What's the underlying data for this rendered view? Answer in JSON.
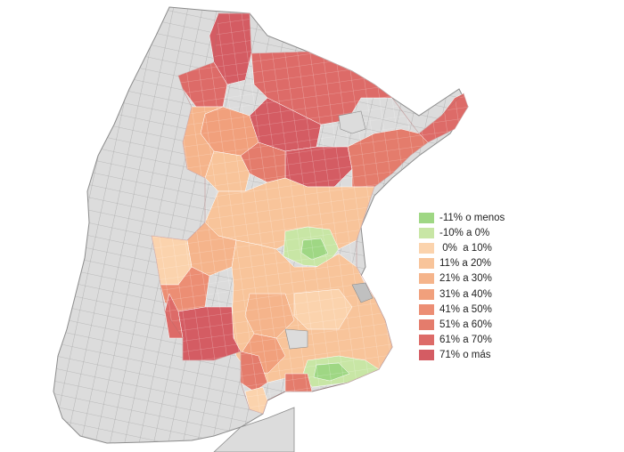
{
  "map": {
    "background_land_color": "#dcdcdc",
    "border_color": "#8c8c8c",
    "region_border_color": "#ffffff"
  },
  "legend": {
    "items": [
      {
        "label": "-11% o menos",
        "color": "#9fd784"
      },
      {
        "label": "-10% a 0%",
        "color": "#c8e6a5"
      },
      {
        "label": " 0%  a 10%",
        "color": "#fbd3ad"
      },
      {
        "label": "11% a 20%",
        "color": "#f8c49a"
      },
      {
        "label": "21% a 30%",
        "color": "#f5b48b"
      },
      {
        "label": "31% a 40%",
        "color": "#f1a07c"
      },
      {
        "label": "41% a 50%",
        "color": "#ec8e74"
      },
      {
        "label": "51% a 60%",
        "color": "#e47c6c"
      },
      {
        "label": "61% a 70%",
        "color": "#dd6b68"
      },
      {
        "label": "71% o más",
        "color": "#d45c63"
      }
    ]
  }
}
